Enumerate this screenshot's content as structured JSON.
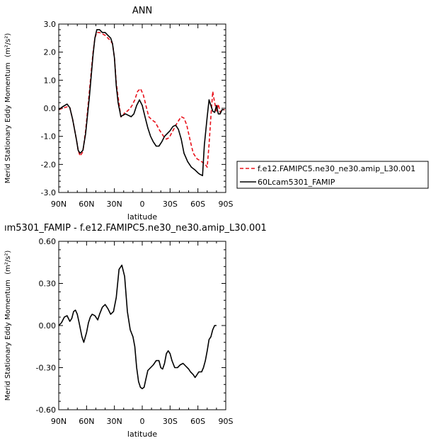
{
  "chart_data": [
    {
      "type": "line",
      "title": "ANN",
      "xlabel": "latitude",
      "ylabel": "Merid Stationary Eddy Momentum",
      "yunit": "(m²/s²)",
      "xlim": [
        90,
        -90
      ],
      "ylim": [
        -3.0,
        3.0
      ],
      "xticks": [
        90,
        60,
        30,
        0,
        -30,
        -60,
        -90
      ],
      "xtick_labels": [
        "90N",
        "60N",
        "30N",
        "0",
        "30S",
        "60S",
        "90S"
      ],
      "yticks": [
        -3.0,
        -2.0,
        -1.0,
        0.0,
        1.0,
        2.0,
        3.0
      ],
      "ytick_labels": [
        "-3.0",
        "-2.0",
        "-1.0",
        "0.0",
        "1.0",
        "2.0",
        "3.0"
      ],
      "legend_position": "right",
      "series": [
        {
          "name": "f.e12.FAMIPC5.ne30_ne30.amip_L30.001",
          "color": "#e8101a",
          "dash": "dashed",
          "points": [
            [
              90,
              -0.05
            ],
            [
              86,
              0.0
            ],
            [
              81,
              0.05
            ],
            [
              78,
              0.02
            ],
            [
              75,
              -0.4
            ],
            [
              71,
              -1.1
            ],
            [
              69,
              -1.5
            ],
            [
              67,
              -1.7
            ],
            [
              64,
              -1.55
            ],
            [
              61,
              -0.8
            ],
            [
              57,
              0.6
            ],
            [
              53,
              2.0
            ],
            [
              51,
              2.5
            ],
            [
              49,
              2.7
            ],
            [
              46,
              2.7
            ],
            [
              43,
              2.65
            ],
            [
              40,
              2.6
            ],
            [
              37,
              2.5
            ],
            [
              34,
              2.4
            ],
            [
              32,
              2.3
            ],
            [
              30,
              1.8
            ],
            [
              28,
              0.9
            ],
            [
              26,
              0.4
            ],
            [
              23,
              -0.3
            ],
            [
              21,
              -0.3
            ],
            [
              19,
              -0.15
            ],
            [
              16,
              -0.1
            ],
            [
              13,
              0.0
            ],
            [
              11,
              0.1
            ],
            [
              8,
              0.3
            ],
            [
              5,
              0.6
            ],
            [
              2,
              0.7
            ],
            [
              -1,
              0.5
            ],
            [
              -4,
              0.1
            ],
            [
              -7,
              -0.3
            ],
            [
              -10,
              -0.4
            ],
            [
              -14,
              -0.5
            ],
            [
              -19,
              -0.8
            ],
            [
              -23,
              -1.0
            ],
            [
              -26,
              -1.1
            ],
            [
              -29,
              -1.05
            ],
            [
              -33,
              -0.8
            ],
            [
              -38,
              -0.5
            ],
            [
              -42,
              -0.3
            ],
            [
              -45,
              -0.35
            ],
            [
              -48,
              -0.6
            ],
            [
              -52,
              -1.2
            ],
            [
              -55,
              -1.6
            ],
            [
              -59,
              -1.8
            ],
            [
              -64,
              -1.9
            ],
            [
              -68,
              -2.0
            ],
            [
              -70,
              -2.1
            ],
            [
              -72,
              -1.3
            ],
            [
              -74,
              -0.3
            ],
            [
              -76,
              0.6
            ],
            [
              -78,
              0.2
            ],
            [
              -80,
              -0.1
            ],
            [
              -82,
              0.15
            ],
            [
              -84,
              -0.15
            ],
            [
              -86,
              -0.05
            ],
            [
              -89,
              -0.05
            ]
          ]
        },
        {
          "name": "60Lcam5301_FAMIP",
          "color": "#000000",
          "dash": "solid",
          "points": [
            [
              90,
              -0.05
            ],
            [
              86,
              0.05
            ],
            [
              81,
              0.15
            ],
            [
              78,
              0.02
            ],
            [
              75,
              -0.4
            ],
            [
              71,
              -1.1
            ],
            [
              69,
              -1.5
            ],
            [
              67,
              -1.6
            ],
            [
              64,
              -1.5
            ],
            [
              61,
              -0.9
            ],
            [
              57,
              0.4
            ],
            [
              53,
              1.9
            ],
            [
              51,
              2.5
            ],
            [
              49,
              2.8
            ],
            [
              46,
              2.8
            ],
            [
              43,
              2.7
            ],
            [
              40,
              2.7
            ],
            [
              37,
              2.6
            ],
            [
              34,
              2.5
            ],
            [
              32,
              2.3
            ],
            [
              30,
              1.8
            ],
            [
              28,
              0.8
            ],
            [
              26,
              0.2
            ],
            [
              23,
              -0.3
            ],
            [
              21,
              -0.25
            ],
            [
              18,
              -0.2
            ],
            [
              15,
              -0.25
            ],
            [
              12,
              -0.3
            ],
            [
              9,
              -0.2
            ],
            [
              6,
              0.1
            ],
            [
              3,
              0.3
            ],
            [
              0,
              0.1
            ],
            [
              -3,
              -0.3
            ],
            [
              -6,
              -0.7
            ],
            [
              -9,
              -1.0
            ],
            [
              -12,
              -1.2
            ],
            [
              -15,
              -1.35
            ],
            [
              -18,
              -1.35
            ],
            [
              -21,
              -1.2
            ],
            [
              -24,
              -1.0
            ],
            [
              -27,
              -0.9
            ],
            [
              -30,
              -0.8
            ],
            [
              -33,
              -0.65
            ],
            [
              -36,
              -0.6
            ],
            [
              -39,
              -0.75
            ],
            [
              -42,
              -1.1
            ],
            [
              -45,
              -1.6
            ],
            [
              -49,
              -1.9
            ],
            [
              -53,
              -2.1
            ],
            [
              -57,
              -2.2
            ],
            [
              -60,
              -2.3
            ],
            [
              -62,
              -2.35
            ],
            [
              -65,
              -2.4
            ],
            [
              -67,
              -1.3
            ],
            [
              -70,
              -0.3
            ],
            [
              -72,
              0.3
            ],
            [
              -74,
              0.1
            ],
            [
              -76,
              -0.1
            ],
            [
              -78,
              -0.15
            ],
            [
              -80,
              0.1
            ],
            [
              -82,
              -0.2
            ],
            [
              -84,
              -0.2
            ],
            [
              -86,
              -0.05
            ],
            [
              -88,
              -0.05
            ]
          ]
        }
      ]
    },
    {
      "type": "line",
      "title": "ım5301_FAMIP - f.e12.FAMIPC5.ne30_ne30.amip_L30.001",
      "xlabel": "latitude",
      "ylabel": "Merid Stationary Eddy Momentum",
      "yunit": "(m²/s²)",
      "xlim": [
        90,
        -90
      ],
      "ylim": [
        -0.6,
        0.6
      ],
      "xticks": [
        90,
        60,
        30,
        0,
        -30,
        -60,
        -90
      ],
      "xtick_labels": [
        "90N",
        "60N",
        "30N",
        "0",
        "30S",
        "60S",
        "90S"
      ],
      "yticks": [
        -0.6,
        -0.3,
        0.0,
        0.3,
        0.6
      ],
      "ytick_labels": [
        "-0.60",
        "-0.30",
        "0.00",
        "0.30",
        "0.60"
      ],
      "series": [
        {
          "color": "#000000",
          "dash": "solid",
          "points": [
            [
              90,
              0.0
            ],
            [
              87,
              0.02
            ],
            [
              84,
              0.06
            ],
            [
              81,
              0.07
            ],
            [
              78,
              0.03
            ],
            [
              76,
              0.05
            ],
            [
              74,
              0.1
            ],
            [
              72,
              0.11
            ],
            [
              70,
              0.08
            ],
            [
              68,
              0.02
            ],
            [
              65,
              -0.08
            ],
            [
              63,
              -0.12
            ],
            [
              60,
              -0.05
            ],
            [
              58,
              0.02
            ],
            [
              56,
              0.06
            ],
            [
              54,
              0.08
            ],
            [
              51,
              0.07
            ],
            [
              48,
              0.04
            ],
            [
              46,
              0.08
            ],
            [
              43,
              0.13
            ],
            [
              40,
              0.15
            ],
            [
              37,
              0.12
            ],
            [
              34,
              0.08
            ],
            [
              31,
              0.1
            ],
            [
              28,
              0.2
            ],
            [
              25,
              0.4
            ],
            [
              22,
              0.43
            ],
            [
              19,
              0.35
            ],
            [
              16,
              0.1
            ],
            [
              13,
              -0.03
            ],
            [
              10,
              -0.08
            ],
            [
              8,
              -0.15
            ],
            [
              6,
              -0.3
            ],
            [
              4,
              -0.4
            ],
            [
              2,
              -0.44
            ],
            [
              0,
              -0.45
            ],
            [
              -2,
              -0.44
            ],
            [
              -4,
              -0.38
            ],
            [
              -6,
              -0.32
            ],
            [
              -9,
              -0.3
            ],
            [
              -12,
              -0.28
            ],
            [
              -15,
              -0.25
            ],
            [
              -18,
              -0.25
            ],
            [
              -20,
              -0.3
            ],
            [
              -22,
              -0.31
            ],
            [
              -24,
              -0.27
            ],
            [
              -26,
              -0.2
            ],
            [
              -28,
              -0.18
            ],
            [
              -30,
              -0.2
            ],
            [
              -32,
              -0.25
            ],
            [
              -35,
              -0.3
            ],
            [
              -38,
              -0.3
            ],
            [
              -41,
              -0.28
            ],
            [
              -44,
              -0.27
            ],
            [
              -47,
              -0.29
            ],
            [
              -50,
              -0.31
            ],
            [
              -52,
              -0.33
            ],
            [
              -55,
              -0.35
            ],
            [
              -57,
              -0.37
            ],
            [
              -59,
              -0.35
            ],
            [
              -61,
              -0.33
            ],
            [
              -64,
              -0.33
            ],
            [
              -66,
              -0.3
            ],
            [
              -68,
              -0.25
            ],
            [
              -70,
              -0.18
            ],
            [
              -72,
              -0.1
            ],
            [
              -74,
              -0.08
            ],
            [
              -76,
              -0.03
            ],
            [
              -78,
              0.0
            ],
            [
              -80,
              0.0
            ]
          ]
        }
      ]
    }
  ]
}
